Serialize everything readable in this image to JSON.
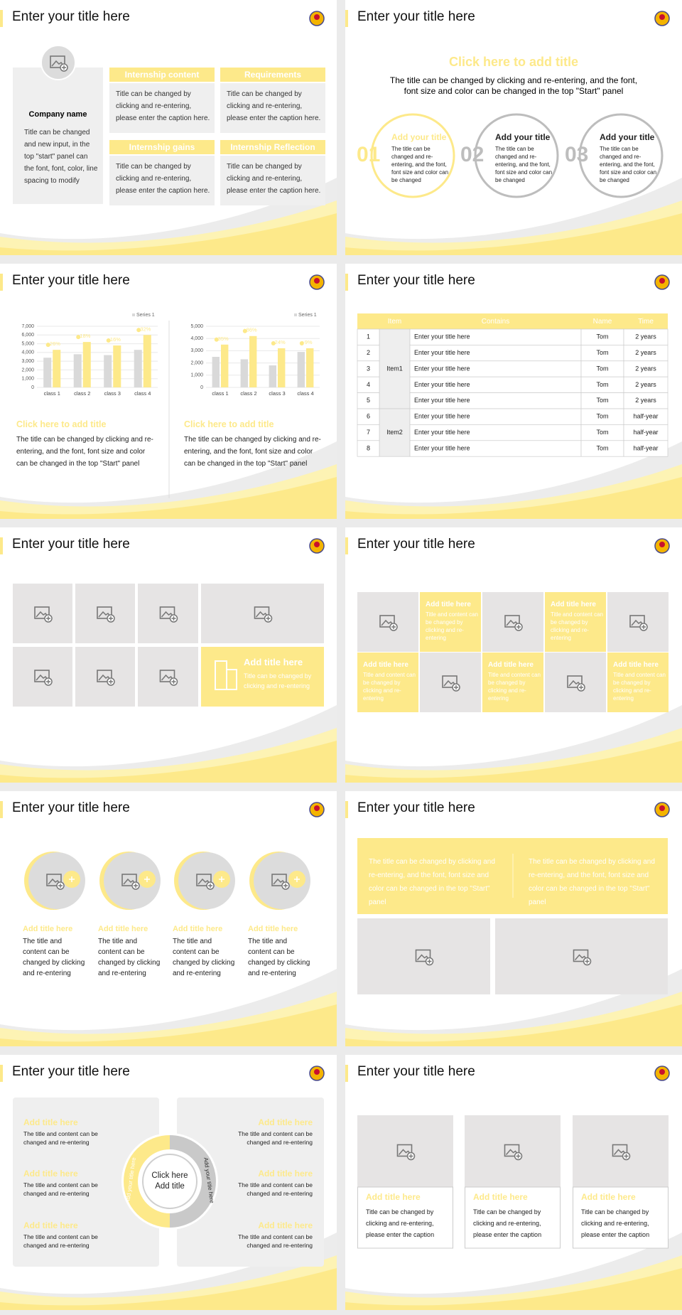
{
  "slides": [
    {
      "title": "Enter your title here",
      "company": {
        "name": "Company name",
        "text": "Title can be changed and new input, in the top \"start\" panel can the font, font, color, line spacing to modify"
      },
      "boxes": [
        {
          "heading": "Internship content",
          "text": "Title can be changed by clicking and re-entering, please enter the caption here."
        },
        {
          "heading": "Requirements",
          "text": "Title can be changed by clicking and re-entering, please enter the caption here."
        },
        {
          "heading": "Internship gains",
          "text": "Title can be changed by clicking and re-entering, please enter the caption here."
        },
        {
          "heading": "Internship Reflection",
          "text": "Title can be changed by clicking and re-entering, please enter the caption here."
        }
      ]
    },
    {
      "title": "Enter your title here",
      "heading": "Click here to add title",
      "subtitle": "The title can be changed by clicking and re-entering, and the font, font size and color can be changed in the top \"Start\" panel",
      "items": [
        {
          "number": "01",
          "heading": "Add your title",
          "text": "The title can be changed and re-entering, and the font, font size and color can be changed"
        },
        {
          "number": "02",
          "heading": "Add your title",
          "text": "The title can be changed and re-entering, and the font, font size and color can be changed"
        },
        {
          "number": "03",
          "heading": "Add your title",
          "text": "The title can be changed and re-entering, and the font, font size and color can be changed"
        }
      ]
    },
    {
      "title": "Enter your title here",
      "panels": [
        {
          "heading": "Click here to add title",
          "text": "The title can be changed by clicking and re-entering, and the font, font size and color can be changed in the top \"Start\" panel"
        },
        {
          "heading": "Click here to add title",
          "text": "The title can be changed by clicking and re-entering, and the font, font size and color can be changed in the top \"Start\" panel"
        }
      ]
    },
    {
      "title": "Enter your title here",
      "table": {
        "header": [
          "Item",
          "Contains",
          "Name",
          "Time"
        ],
        "groups": [
          {
            "item": "Item1",
            "rows": [
              [
                1,
                "Enter your title here",
                "Tom",
                "2 years"
              ],
              [
                2,
                "Enter your title here",
                "Tom",
                "2 years"
              ],
              [
                3,
                "Enter your title here",
                "Tom",
                "2 years"
              ],
              [
                4,
                "Enter your title here",
                "Tom",
                "2 years"
              ],
              [
                5,
                "Enter your title here",
                "Tom",
                "2 years"
              ]
            ]
          },
          {
            "item": "Item2",
            "rows": [
              [
                6,
                "Enter your title here",
                "Tom",
                "half-year"
              ],
              [
                7,
                "Enter your title here",
                "Tom",
                "half-year"
              ],
              [
                8,
                "Enter your title here",
                "Tom",
                "half-year"
              ]
            ]
          }
        ]
      }
    },
    {
      "title": "Enter your title here",
      "feature": {
        "heading": "Add title here",
        "text": "Title can be changed by clicking and re-entering"
      }
    },
    {
      "title": "Enter your title here",
      "cells": [
        {
          "heading": "Add title here",
          "text": "Title and content can be changed by clicking and re-entering"
        },
        {
          "heading": "Add title here",
          "text": "Title and content can be changed by clicking and re-entering"
        },
        {
          "heading": "Add title here",
          "text": "Title and content can be changed by clicking and re-entering"
        },
        {
          "heading": "Add title here",
          "text": "Title and content can be changed by clicking and re-entering"
        },
        {
          "heading": "Add title here",
          "text": "Title and content can be changed by clicking and re-entering"
        }
      ]
    },
    {
      "title": "Enter your title here",
      "items": [
        {
          "heading": "Add title here",
          "text": "The title and content can be changed by clicking and re-entering"
        },
        {
          "heading": "Add title here",
          "text": "The title and content can be changed by clicking and re-entering"
        },
        {
          "heading": "Add title here",
          "text": "The title and content can be changed by clicking and re-entering"
        },
        {
          "heading": "Add title here",
          "text": "The title and content can be changed by clicking and re-entering"
        }
      ]
    },
    {
      "title": "Enter your title here",
      "texts": [
        "The title can be changed by clicking and re-entering, and the font, font size and color can be changed in the top \"Start\" panel",
        "The title can be changed by clicking and re-entering, and the font, font size and color can be changed in the top \"Start\" panel"
      ]
    },
    {
      "title": "Enter your title here",
      "left": [
        {
          "heading": "Add title here",
          "text": "The title and content can be changed and re-entering"
        },
        {
          "heading": "Add title here",
          "text": "The title and content can be changed and re-entering"
        },
        {
          "heading": "Add title here",
          "text": "The title and content can be changed and re-entering"
        }
      ],
      "right": [
        {
          "heading": "Add title here",
          "text": "The title and content can be changed and re-entering"
        },
        {
          "heading": "Add title here",
          "text": "The title and content can be changed and re-entering"
        },
        {
          "heading": "Add title here",
          "text": "The title and content can be changed and re-entering"
        }
      ],
      "center": "Click here Add title",
      "arc_labels": [
        "Add your title here",
        "Add your title here"
      ]
    },
    {
      "title": "Enter your title here",
      "cards": [
        {
          "heading": "Add title here",
          "text": "Title can be changed by clicking and re-entering, please enter the caption"
        },
        {
          "heading": "Add title here",
          "text": "Title can be changed by clicking and re-entering, please enter the caption"
        },
        {
          "heading": "Add title here",
          "text": "Title can be changed by clicking and re-entering, please enter the caption"
        }
      ]
    }
  ],
  "chart_data": [
    {
      "type": "bar",
      "categories": [
        "class 1",
        "class 2",
        "class 3",
        "class 4"
      ],
      "series": [
        {
          "name": "Series 1",
          "color": "#d9d9d9",
          "values": [
            3400,
            3800,
            3700,
            4300
          ]
        },
        {
          "color": "#fde98a",
          "values": [
            4300,
            5200,
            4800,
            6000
          ]
        }
      ],
      "annotations": [
        "+26%",
        "+18%",
        "+16%",
        "+32%"
      ],
      "ylim": [
        0,
        7000
      ],
      "yticks": [
        0,
        {
          "value": 1000,
          "label": "1,000"
        },
        {
          "value": 2000,
          "label": "2,000"
        },
        {
          "value": 3000,
          "label": "3,000"
        },
        {
          "value": 4000,
          "label": "4,000"
        },
        {
          "value": 5000,
          "label": "5,000"
        },
        {
          "value": 6000,
          "label": "6,000"
        },
        {
          "value": 7000,
          "label": "7,000"
        }
      ],
      "grid": true
    },
    {
      "type": "bar",
      "categories": [
        "class 1",
        "class 2",
        "class 3",
        "class 4"
      ],
      "series": [
        {
          "name": "Series 1",
          "color": "#d9d9d9",
          "values": [
            2500,
            2300,
            1800,
            2900
          ]
        },
        {
          "color": "#fde98a",
          "values": [
            3500,
            4200,
            3200,
            3200
          ]
        }
      ],
      "annotations": [
        "+35%",
        "+86%",
        "+24%",
        "+9%"
      ],
      "ylim": [
        0,
        5000
      ],
      "yticks": [
        0,
        {
          "value": 1000,
          "label": "1,000"
        },
        {
          "value": 2000,
          "label": "2,000"
        },
        {
          "value": 3000,
          "label": "3,000"
        },
        {
          "value": 4000,
          "label": "4,000"
        },
        {
          "value": 5000,
          "label": "5,000"
        }
      ],
      "grid": true
    }
  ]
}
